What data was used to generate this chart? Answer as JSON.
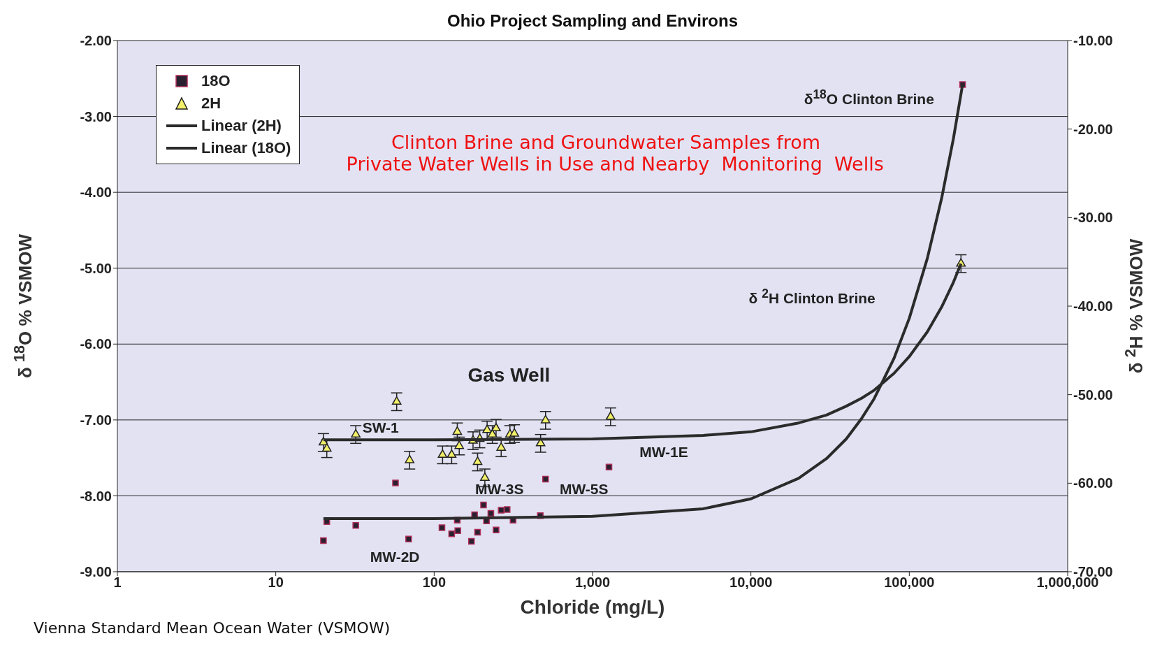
{
  "chart_data": {
    "type": "scatter",
    "title": "Ohio Project Sampling and Environs",
    "xlabel": "Chloride (mg/L)",
    "ylabel": "δ $^{18}$O % VSMOW",
    "y2label": "δ $^{2}$H % VSMOW",
    "log": "x",
    "grid": "y",
    "legend": "top left",
    "xlim": [
      1,
      1000000
    ],
    "xticks": [
      1,
      10,
      100,
      {
        "value": 1000,
        "label": "1,000"
      },
      {
        "value": 10000,
        "label": "10,000"
      },
      {
        "value": 100000,
        "label": "100,000"
      },
      {
        "value": 1000000,
        "label": "1,000,000"
      }
    ],
    "ylim": [
      -9,
      -2
    ],
    "yticks": [
      {
        "value": -9,
        "label": "-9.00"
      },
      {
        "value": -8,
        "label": "-8.00"
      },
      {
        "value": -7,
        "label": "-7.00"
      },
      {
        "value": -6,
        "label": "-6.00"
      },
      {
        "value": -5,
        "label": "-5.00"
      },
      {
        "value": -4,
        "label": "-4.00"
      },
      {
        "value": -3,
        "label": "-3.00"
      },
      {
        "value": -2,
        "label": "-2.00"
      }
    ],
    "y2lim": [
      -70,
      -10
    ],
    "y2ticks": [
      {
        "value": -70,
        "label": "-70.00"
      },
      {
        "value": -60,
        "label": "-60.00"
      },
      {
        "value": -50,
        "label": "-50.00"
      },
      {
        "value": -40,
        "label": "-40.00"
      },
      {
        "value": -30,
        "label": "-30.00"
      },
      {
        "value": -20,
        "label": "-20.00"
      },
      {
        "value": -10,
        "label": "-10.00"
      }
    ],
    "series": [
      {
        "name": "18O",
        "marker": "square",
        "color": "#2a2030",
        "x": [
          217000,
          1270,
          505,
          468,
          57,
          21,
          20,
          32,
          69,
          112,
          129,
          141,
          140,
          172,
          180,
          188,
          205,
          214,
          228,
          246,
          265,
          289,
          315
        ],
        "values": [
          -2.58,
          -7.62,
          -7.78,
          -8.26,
          -7.83,
          -8.34,
          -8.59,
          -8.39,
          -8.57,
          -8.42,
          -8.5,
          -8.46,
          -8.32,
          -8.6,
          -8.25,
          -8.48,
          -8.12,
          -8.33,
          -8.23,
          -8.45,
          -8.19,
          -8.18,
          -8.32
        ]
      },
      {
        "name": "2H",
        "marker": "triangle",
        "axis": "y2",
        "color": "#f2ef6a",
        "x": [
          212000,
          1300,
          505,
          470,
          58,
          20,
          21,
          32,
          70,
          113,
          129,
          140,
          144,
          176,
          188,
          194,
          209,
          216,
          233,
          246,
          265,
          301,
          321
        ],
        "values": [
          -35.2,
          -52.5,
          -52.9,
          -55.5,
          -50.8,
          -55.4,
          -56.1,
          -54.5,
          -57.4,
          -56.8,
          -56.8,
          -54.2,
          -55.8,
          -55.2,
          -57.6,
          -55.0,
          -59.4,
          -54.0,
          -54.5,
          -53.8,
          -56.0,
          -54.5,
          -54.4
        ],
        "errors": [
          1,
          1,
          1,
          1,
          1,
          1,
          1,
          1,
          1,
          1,
          1,
          1,
          1,
          1,
          1,
          1,
          1,
          1,
          1,
          1,
          1,
          1,
          1
        ]
      },
      {
        "name": "Linear (2H)",
        "type": "line",
        "marker": "none",
        "axis": "y2",
        "color": "#2b2b2b",
        "x": [
          20,
          100,
          1000,
          5000,
          10000,
          20000,
          30000,
          40000,
          50000,
          60000,
          80000,
          100000,
          130000,
          160000,
          190000,
          212000
        ],
        "values": [
          -55.1,
          -55.1,
          -55.0,
          -54.6,
          -54.2,
          -53.2,
          -52.3,
          -51.3,
          -50.4,
          -49.5,
          -47.6,
          -45.7,
          -42.9,
          -40.1,
          -37.3,
          -35.2
        ]
      },
      {
        "name": "Linear (18O)",
        "type": "line",
        "marker": "none",
        "color": "#2b2b2b",
        "x": [
          20,
          100,
          1000,
          5000,
          10000,
          20000,
          30000,
          40000,
          50000,
          60000,
          80000,
          100000,
          130000,
          160000,
          190000,
          217000
        ],
        "values": [
          -8.3,
          -8.3,
          -8.27,
          -8.17,
          -8.04,
          -7.77,
          -7.51,
          -7.25,
          -6.98,
          -6.72,
          -6.19,
          -5.66,
          -4.87,
          -4.08,
          -3.29,
          -2.58
        ]
      }
    ],
    "annotations": [
      "Clinton Brine and Groundwater Samples from\n Private Water Wells in Use and Nearby  Monitoring  Wells",
      "Vienna Standard Mean Ocean Water (VSMOW)",
      "δ$^{18}$O Clinton Brine",
      "δ $^{2}$H Clinton Brine",
      "Gas Well",
      "SW-1",
      "MW-2D",
      "MW-3S",
      "MW-5S",
      "MW-1E"
    ]
  }
}
